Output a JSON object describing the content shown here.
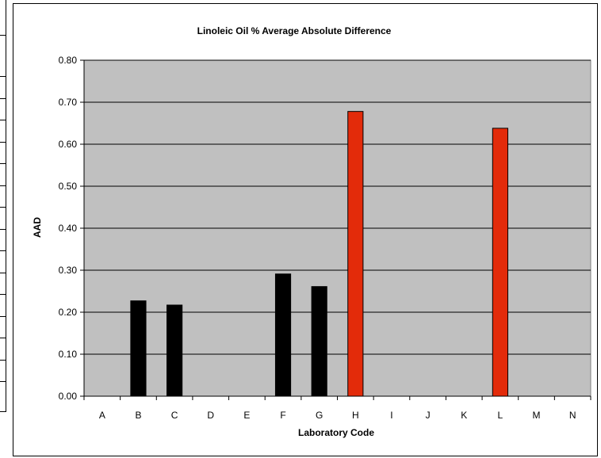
{
  "chart_data": {
    "type": "bar",
    "title": "Linoleic Oil % Average Absolute Difference",
    "xlabel": "Laboratory Code",
    "ylabel": "AAD",
    "categories": [
      "A",
      "B",
      "C",
      "D",
      "E",
      "F",
      "G",
      "H",
      "I",
      "J",
      "K",
      "L",
      "M",
      "N"
    ],
    "values": [
      null,
      0.227,
      0.217,
      null,
      null,
      0.291,
      0.261,
      0.678,
      null,
      null,
      null,
      0.638,
      null,
      null
    ],
    "bar_colors": [
      "#000000",
      "#000000",
      "#000000",
      "#000000",
      "#000000",
      "#000000",
      "#000000",
      "#e32b0a",
      "#000000",
      "#000000",
      "#000000",
      "#e32b0a",
      "#000000",
      "#000000"
    ],
    "ylim": [
      0,
      0.8
    ],
    "yticks": [
      "0.00",
      "0.10",
      "0.20",
      "0.30",
      "0.40",
      "0.50",
      "0.60",
      "0.70",
      "0.80"
    ],
    "grid": true,
    "legend": "none",
    "plot_background": "#c0c0c0"
  }
}
